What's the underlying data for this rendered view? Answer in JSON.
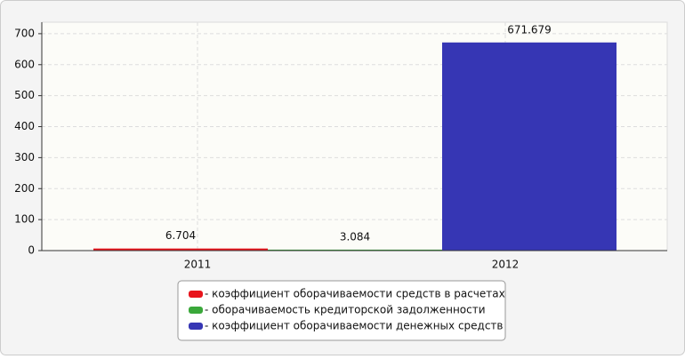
{
  "chart_data": {
    "type": "bar",
    "categories": [
      "2011",
      "2012"
    ],
    "series": [
      {
        "name": "- коэффициент оборачиваемости средств в расчетах",
        "color": "#e8141c",
        "values": [
          6.704,
          null
        ]
      },
      {
        "name": "- оборачиваемость кредиторской задолженности",
        "color": "#3aa83a",
        "values": [
          null,
          3.084
        ]
      },
      {
        "name": "- коэффициент оборачиваемости денежных средств",
        "color": "#3636b4",
        "values": [
          null,
          671.679
        ]
      }
    ],
    "ylim": [
      0,
      737
    ],
    "yticks": [
      0,
      100,
      200,
      300,
      400,
      500,
      600,
      700
    ],
    "grid": true
  }
}
